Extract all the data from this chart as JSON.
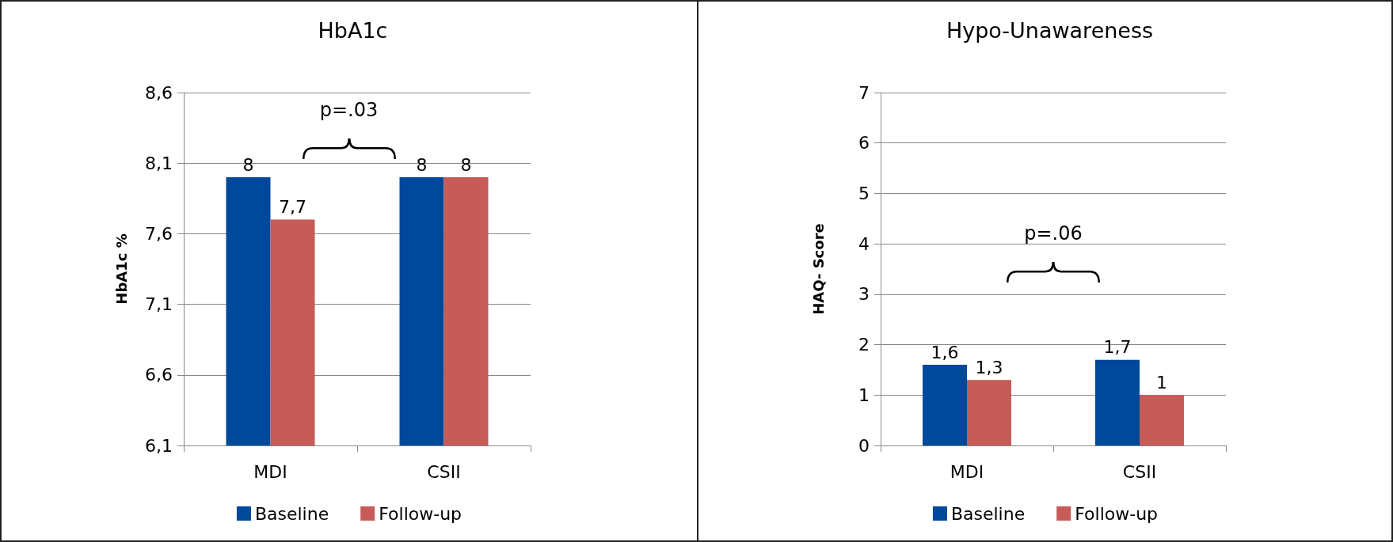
{
  "chart_data": [
    {
      "type": "bar",
      "title": "HbA1c",
      "ylabel": "HbA1c %",
      "categories": [
        "MDI",
        "CSII"
      ],
      "series": [
        {
          "name": "Baseline",
          "color": "#00489a",
          "values": [
            8,
            8
          ],
          "value_labels": [
            "8",
            "8"
          ]
        },
        {
          "name": "Follow-up",
          "color": "#c65b58",
          "values": [
            7.7,
            8
          ],
          "value_labels": [
            "7,7",
            "8"
          ]
        }
      ],
      "ylim": [
        6.1,
        8.6
      ],
      "yticks": [
        {
          "value": 6.1,
          "label": "6,1"
        },
        {
          "value": 6.6,
          "label": "6,6"
        },
        {
          "value": 7.1,
          "label": "7,1"
        },
        {
          "value": 7.6,
          "label": "7,6"
        },
        {
          "value": 8.1,
          "label": "8,1"
        },
        {
          "value": 8.6,
          "label": "8,6"
        }
      ],
      "grid": "y",
      "legend": "bottom",
      "annotations": [
        "p=.03"
      ]
    },
    {
      "type": "bar",
      "title": "Hypo-Unawareness",
      "ylabel": "HAQ- Score",
      "categories": [
        "MDI",
        "CSII"
      ],
      "series": [
        {
          "name": "Baseline",
          "color": "#00489a",
          "values": [
            1.6,
            1.7
          ],
          "value_labels": [
            "1,6",
            "1,7"
          ]
        },
        {
          "name": "Follow-up",
          "color": "#c65b58",
          "values": [
            1.3,
            1
          ],
          "value_labels": [
            "1,3",
            "1"
          ]
        }
      ],
      "ylim": [
        0,
        7
      ],
      "yticks": [
        0,
        1,
        2,
        3,
        4,
        5,
        6,
        7
      ],
      "grid": "y",
      "legend": "bottom",
      "annotations": [
        "p=.06"
      ]
    }
  ]
}
